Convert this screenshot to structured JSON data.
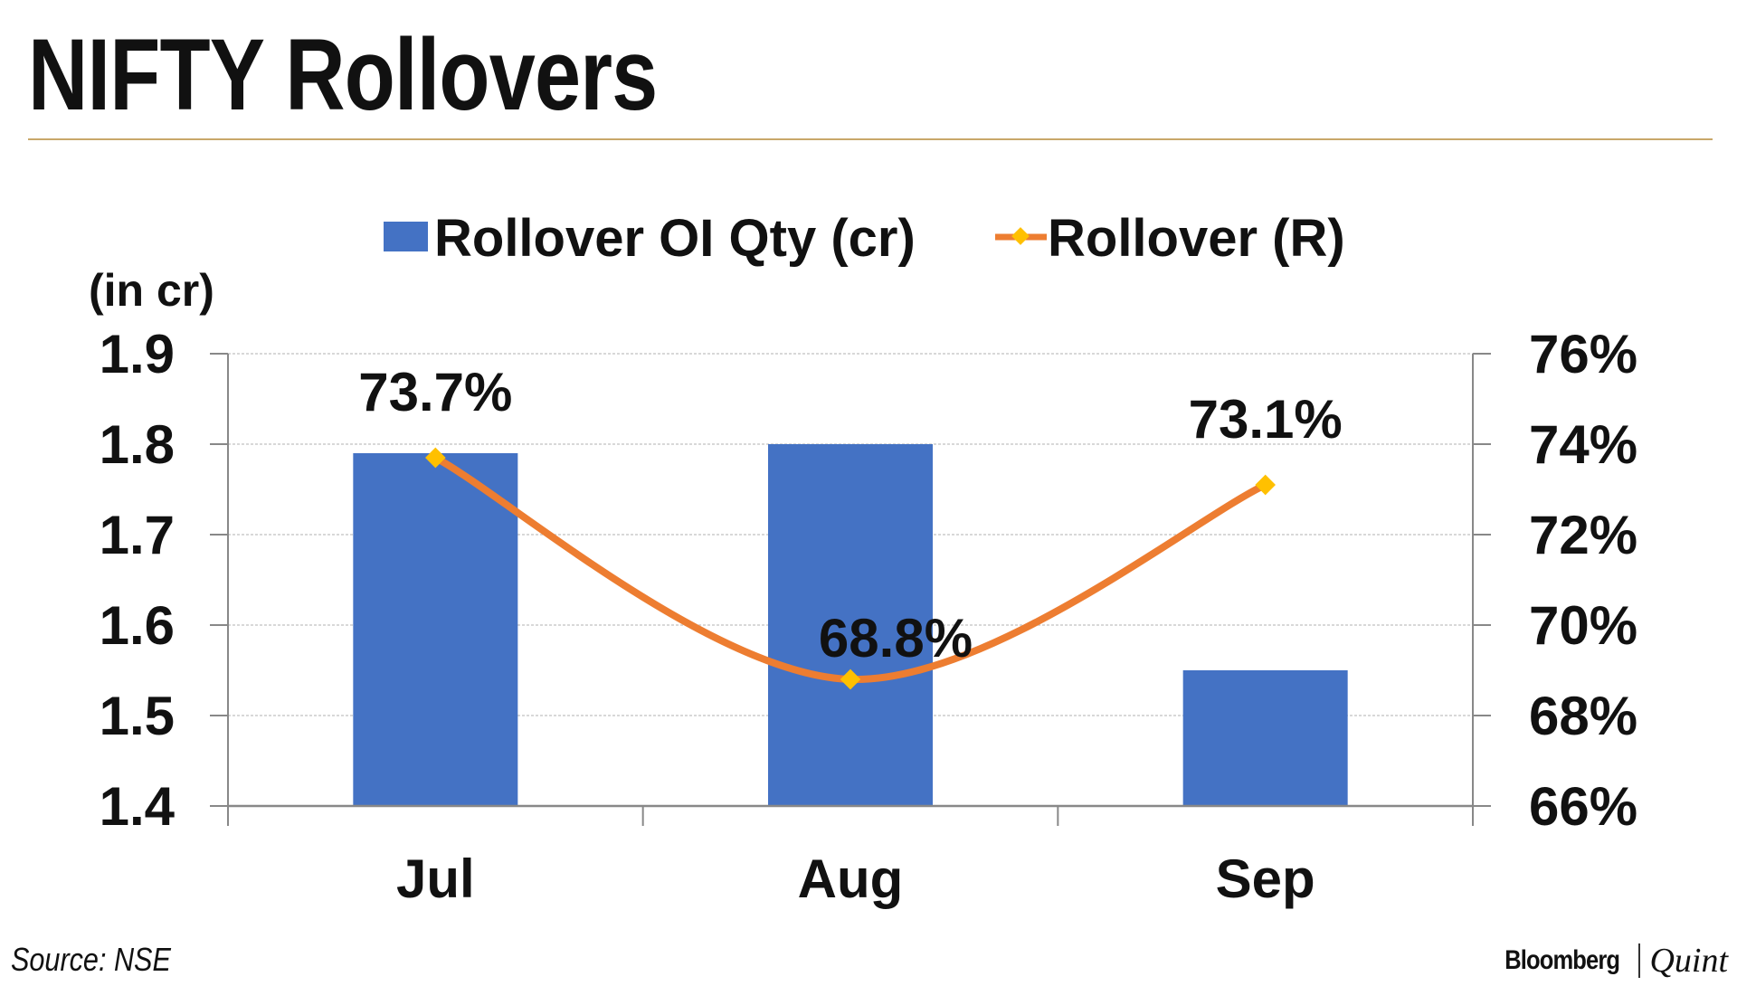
{
  "header": {
    "title": "NIFTY Rollovers"
  },
  "footer": {
    "source": "Source: NSE",
    "brand_left": "Bloomberg",
    "brand_right": "Quint"
  },
  "colors": {
    "bar": "#4472c4",
    "line": "#ed7d31",
    "marker": "#ffc000",
    "rule": "#c9a86a"
  },
  "chart_data": {
    "type": "bar+line",
    "categories": [
      "Jul",
      "Aug",
      "Sep"
    ],
    "series": [
      {
        "name": "Rollover OI Qty (cr)",
        "type": "bar",
        "axis": "left",
        "values": [
          1.79,
          1.8,
          1.55
        ]
      },
      {
        "name": "Rollover (R)",
        "type": "line",
        "axis": "right",
        "values": [
          73.7,
          68.8,
          73.1
        ],
        "labels": [
          "73.7%",
          "68.8%",
          "73.1%"
        ]
      }
    ],
    "ylabel": "(in cr)",
    "ylim": [
      1.4,
      1.9
    ],
    "yticks": [
      "1.4",
      "1.5",
      "1.6",
      "1.7",
      "1.8",
      "1.9"
    ],
    "y2lim": [
      66,
      76
    ],
    "y2ticks": [
      "66%",
      "68%",
      "70%",
      "72%",
      "74%",
      "76%"
    ],
    "grid": true,
    "legend": "top-center"
  }
}
